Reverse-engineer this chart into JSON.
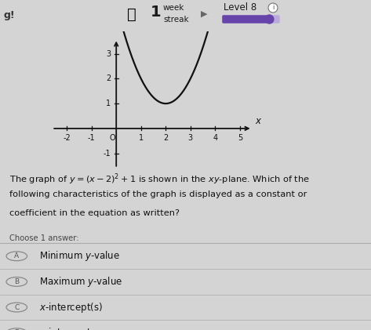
{
  "background_color": "#d4d4d4",
  "equation": "y = (x - 2)^2 + 1",
  "question_lines": [
    "The graph of $y = (x-2)^2 + 1$ is shown in the $xy$-plane. Which of the",
    "following characteristics of the graph is displayed as a constant or",
    "coefficient in the equation as written?"
  ],
  "choose_text": "Choose 1 answer:",
  "answers": [
    {
      "label": "A",
      "text": "Minimum $y$-value"
    },
    {
      "label": "B",
      "text": "Maximum $y$-value"
    },
    {
      "label": "C",
      "text": "$x$-intercept(s)"
    },
    {
      "label": "D",
      "text": "$y$-intercept"
    }
  ],
  "xmin": -2.6,
  "xmax": 5.8,
  "ymin": -1.6,
  "ymax": 3.9,
  "xticks": [
    -2,
    -1,
    1,
    2,
    3,
    4,
    5
  ],
  "yticks": [
    -1,
    1,
    2,
    3
  ],
  "parabola_color": "#111111",
  "axis_color": "#111111",
  "curve_xmin": -0.35,
  "curve_xmax": 4.42,
  "vertex_x": 2,
  "vertex_y": 1,
  "flame_color": "#e05a00",
  "level_bar_color": "#6644aa",
  "level_bar_bg": "#bbaadd",
  "top_bg": "#c8c8c8",
  "streak_num": "1",
  "streak_label1": "week",
  "streak_label2": "streak",
  "level_label": "Level 8",
  "left_label": "g!"
}
